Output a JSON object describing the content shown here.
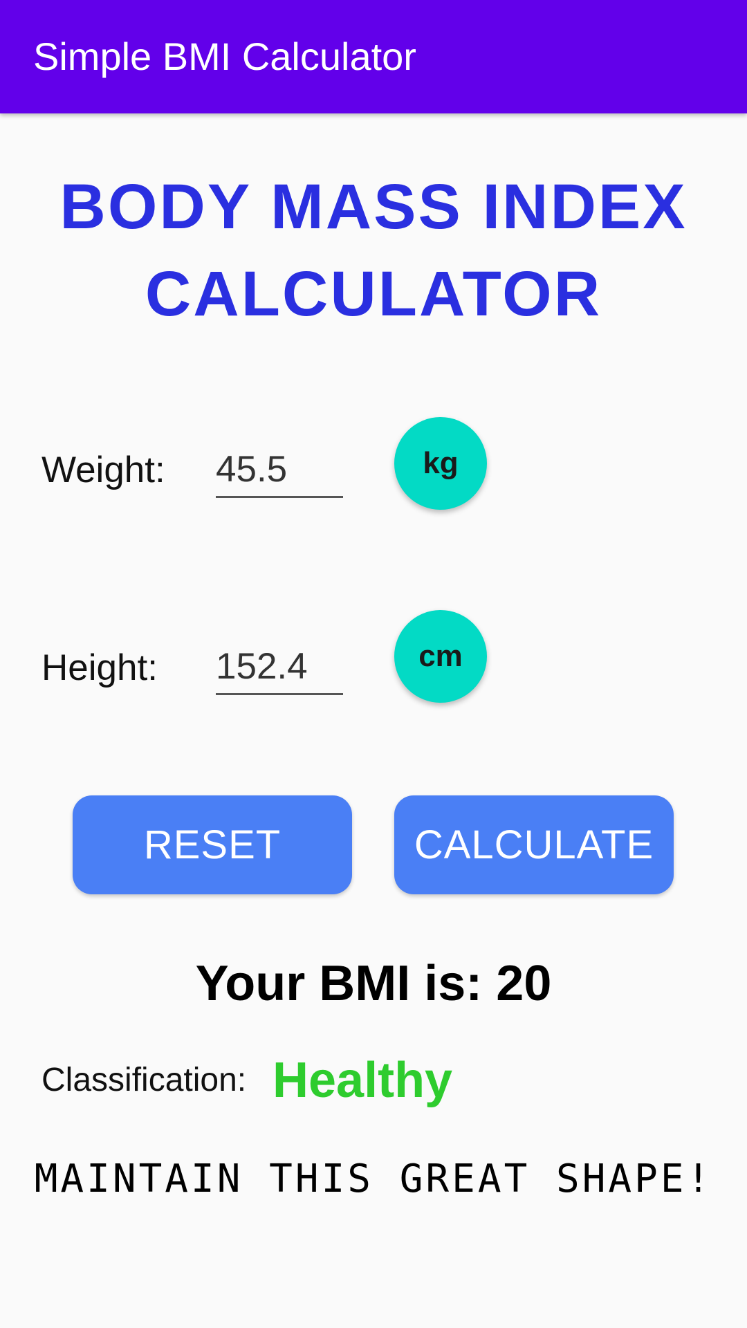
{
  "app_bar": {
    "title": "Simple BMI Calculator",
    "color": "#6200ea"
  },
  "headline": {
    "line1": "BODY MASS INDEX",
    "line2": "CALCULATOR",
    "color": "#2a2fe0"
  },
  "weight": {
    "label": "Weight:",
    "value": "45.5",
    "unit": "kg"
  },
  "height": {
    "label": "Height:",
    "value": "152.4",
    "unit": "cm"
  },
  "buttons": {
    "reset_label": "RESET",
    "calculate_label": "CALCULATE",
    "color": "#4a7ff5",
    "unit_color": "#03dac5"
  },
  "result": {
    "bmi_text": "Your BMI is: 20",
    "classification_label": "Classification:",
    "classification_value": "Healthy",
    "classification_color": "#2ecc2e",
    "advice": "MAINTAIN THIS GREAT SHAPE!"
  }
}
